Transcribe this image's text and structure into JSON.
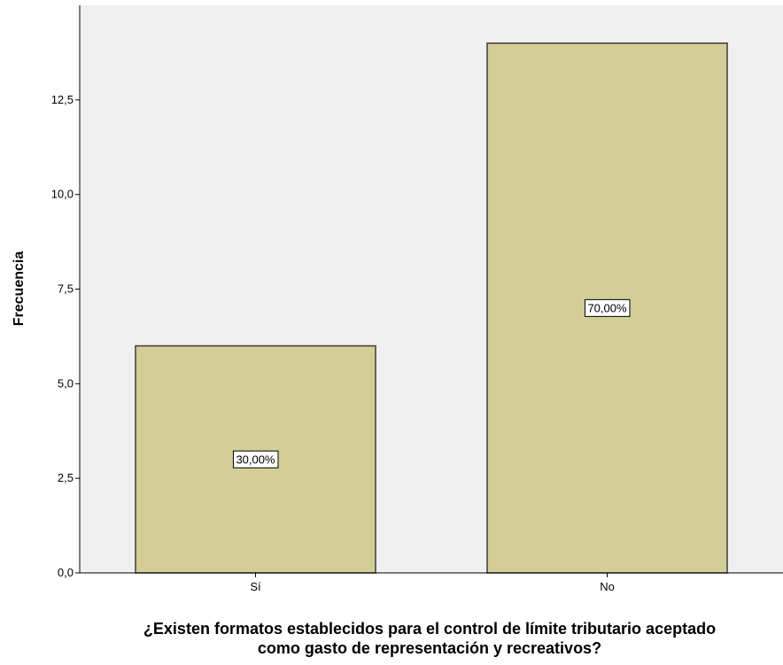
{
  "chart_data": {
    "type": "bar",
    "categories": [
      "Sí",
      "No"
    ],
    "values": [
      6,
      14
    ],
    "data_labels": [
      "30,00%",
      "70,00%"
    ],
    "xlabel_lines": [
      "¿Existen formatos establecidos para el control de límite tributario aceptado",
      "como gasto de representación y recreativos?"
    ],
    "ylabel": "Frecuencia",
    "ylim": [
      0,
      15
    ],
    "yticks": [
      0,
      2.5,
      5,
      7.5,
      10,
      12.5
    ],
    "ytick_labels": [
      "0,0",
      "2,5",
      "5,0",
      "7,5",
      "10,0",
      "12,5"
    ],
    "grid": false,
    "colors": {
      "plot_background": "#f0f0f0",
      "bar_fill": "#d3ce97",
      "bar_stroke": "#3c3c3c"
    }
  }
}
